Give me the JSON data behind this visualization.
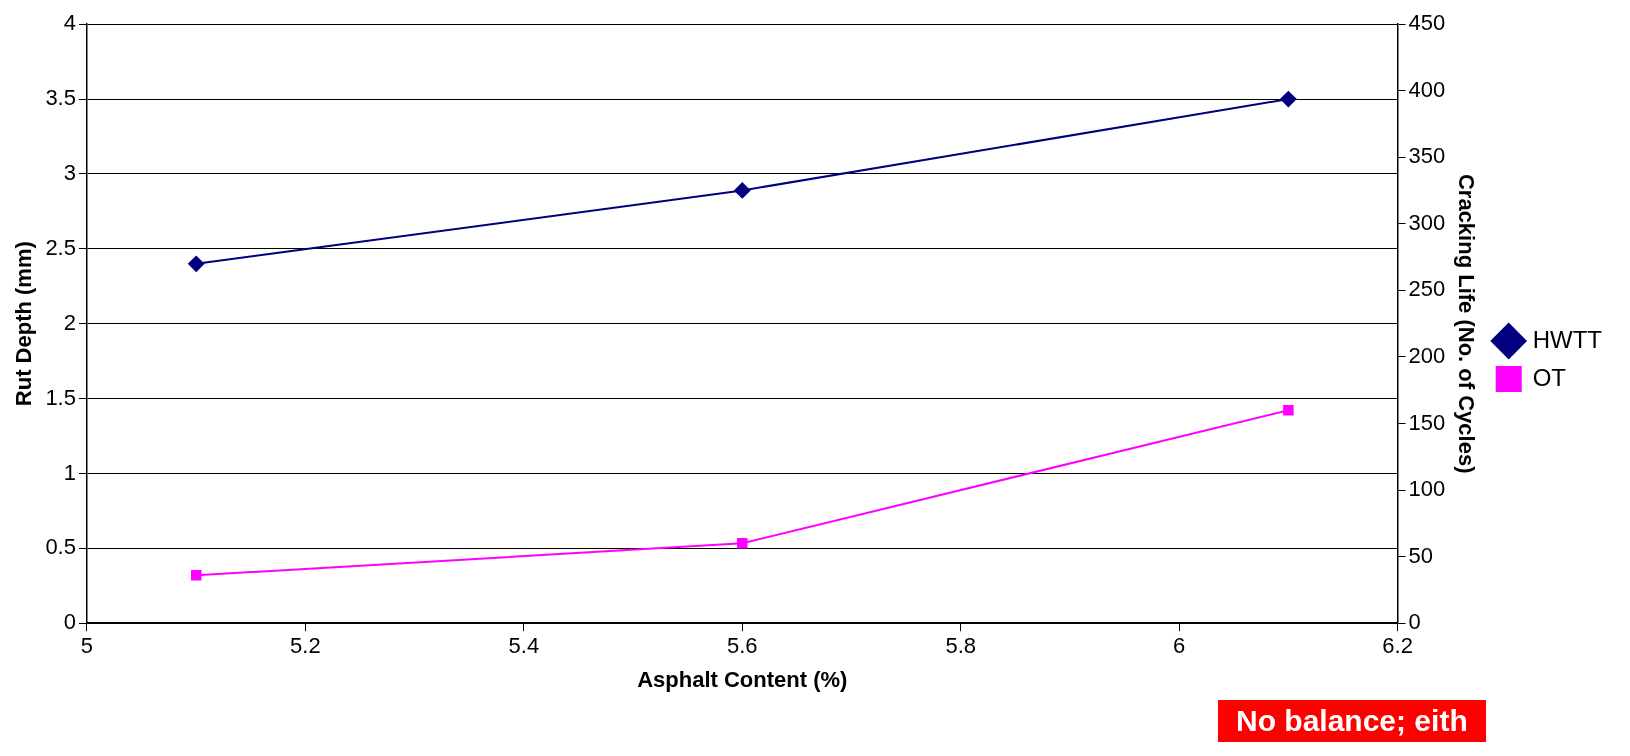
{
  "chart_data": {
    "type": "line",
    "xlabel": "Asphalt Content (%)",
    "ylabel": "Rut Depth (mm)",
    "y2label": "Cracking Life (No. of Cycles)",
    "x": [
      5.1,
      5.6,
      6.1
    ],
    "series": [
      {
        "name": "HWTT",
        "color": "#000080",
        "values": [
          2.4,
          2.89,
          3.5
        ],
        "marker": "diamond"
      },
      {
        "name": "OT",
        "color": "#ff00ff",
        "values": [
          36,
          60,
          160
        ],
        "axis": "y2",
        "marker": "square"
      }
    ],
    "xlim": [
      5,
      6.2
    ],
    "xticks": [
      5,
      5.2,
      5.4,
      5.6,
      5.8,
      6,
      6.2
    ],
    "ylim": [
      0,
      4
    ],
    "yticks": [
      0,
      0.5,
      1,
      1.5,
      2,
      2.5,
      3,
      3.5,
      4
    ],
    "y2lim": [
      0,
      450
    ],
    "y2ticks": [
      0,
      50,
      100,
      150,
      200,
      250,
      300,
      350,
      400,
      450
    ],
    "grid": "y",
    "legend": "right",
    "line_style": "solid",
    "annotations": [
      "No balance; eith"
    ]
  }
}
